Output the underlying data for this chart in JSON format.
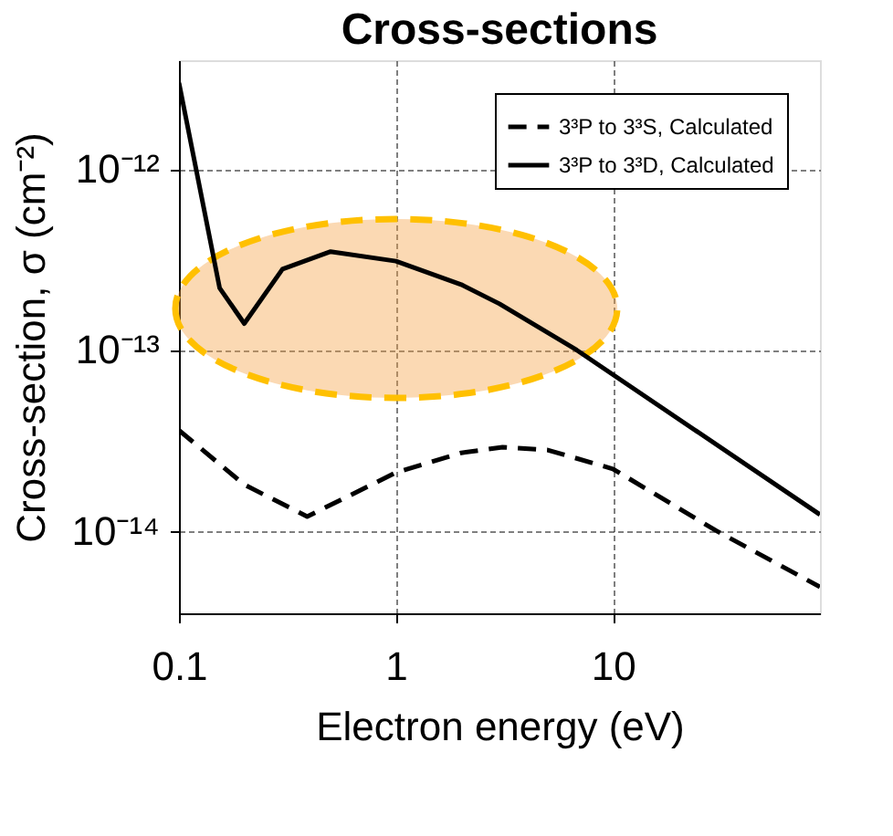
{
  "chart_data": {
    "type": "line",
    "title": "Cross-sections",
    "xlabel": "Electron energy (eV)",
    "ylabel": "Cross-section, σ (cm⁻²)",
    "log": "xy",
    "grid": true,
    "legend": "top right",
    "xlim": [
      0.1,
      90
    ],
    "xticks": [
      0.1,
      1,
      10
    ],
    "ylim": [
      3.5e-15,
      4e-12
    ],
    "yticks": [
      {
        "value": 1e-14,
        "label": "10⁻¹⁴"
      },
      {
        "value": 1e-13,
        "label": "10⁻¹³"
      },
      {
        "value": 1e-12,
        "label": "10⁻¹²"
      }
    ],
    "series": [
      {
        "name": "3³P to 3³S, Calculated",
        "color": "#000000",
        "line_style": "dashed",
        "x": [
          0.1,
          0.2,
          0.39,
          1,
          2,
          3.1,
          5,
          10,
          30,
          90
        ],
        "values": [
          3.6e-14,
          1.8e-14,
          1.2e-14,
          2.1e-14,
          2.7e-14,
          2.9e-14,
          2.8e-14,
          2.2e-14,
          1e-14,
          4.9e-15
        ]
      },
      {
        "name": "3³P to 3³D, Calculated",
        "color": "#000000",
        "line_style": "solid",
        "x": [
          0.1,
          0.154,
          0.2,
          0.3,
          0.5,
          1,
          2,
          3,
          6.8,
          90
        ],
        "values": [
          3e-12,
          2.2e-13,
          1.4e-13,
          2.8e-13,
          3.5e-13,
          3.1e-13,
          2.3e-13,
          1.8e-13,
          1e-13,
          1.23e-14
        ]
      }
    ]
  }
}
